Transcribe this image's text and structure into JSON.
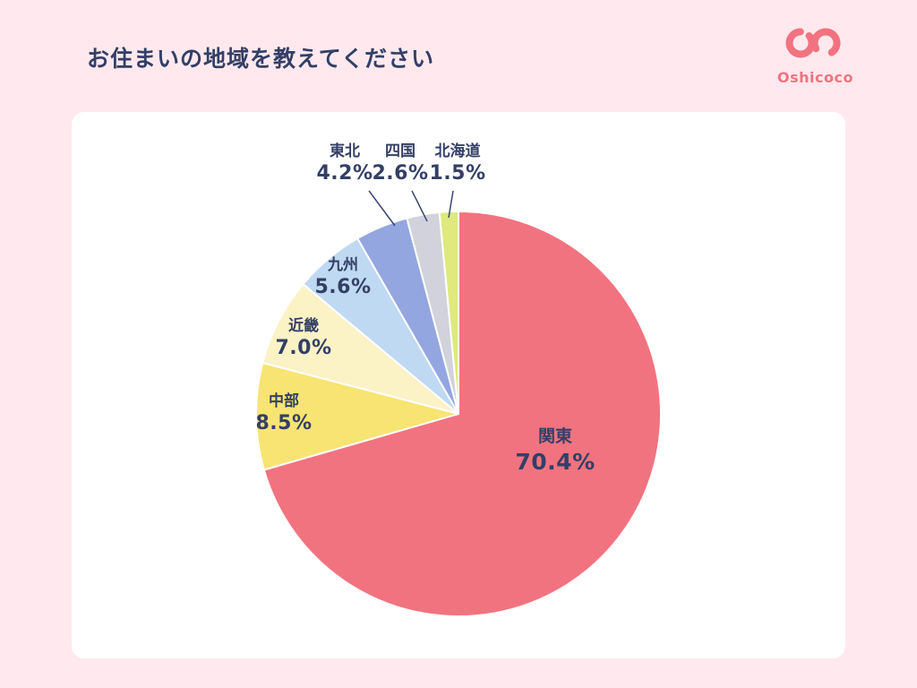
{
  "page": {
    "background": "#FFE9EE",
    "title": "お住まいの地域を教えてください",
    "brand": "Oshicoco",
    "accent_pink": "#F1737F",
    "text_navy": "#333F66",
    "card_background": "#FFFFFF"
  },
  "chart_data": {
    "type": "pie",
    "title": "お住まいの地域を教えてください",
    "start_angle_deg": 0,
    "direction": "clockwise",
    "legend_position": "labels-around-pie",
    "slices": [
      {
        "label": "関東",
        "value": 70.4,
        "pct_label": "70.4%",
        "color": "#F1737F"
      },
      {
        "label": "中部",
        "value": 8.5,
        "pct_label": "8.5%",
        "color": "#F8E472"
      },
      {
        "label": "近畿",
        "value": 7.0,
        "pct_label": "7.0%",
        "color": "#FBF2C6"
      },
      {
        "label": "九州",
        "value": 5.6,
        "pct_label": "5.6%",
        "color": "#BFD9F2"
      },
      {
        "label": "東北",
        "value": 4.2,
        "pct_label": "4.2%",
        "color": "#93A6E0"
      },
      {
        "label": "四国",
        "value": 2.6,
        "pct_label": "2.6%",
        "color": "#D2D2DC"
      },
      {
        "label": "北海道",
        "value": 1.5,
        "pct_label": "1.5%",
        "color": "#DEE97E"
      }
    ]
  }
}
